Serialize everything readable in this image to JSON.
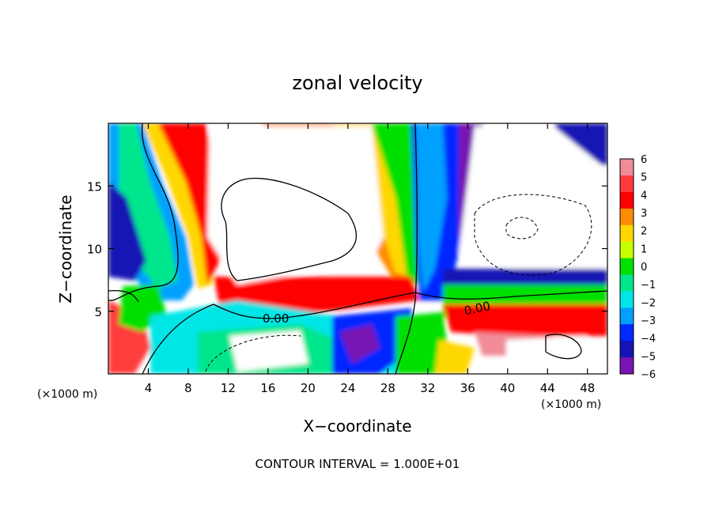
{
  "chart_data": {
    "type": "heatmap",
    "title": "zonal velocity",
    "xlabel": "X−coordinate",
    "ylabel": "Z−coordinate",
    "x_unit_left": "(×1000 m)",
    "x_unit_right": "(×1000 m)",
    "footer": "CONTOUR INTERVAL = 1.000E+01",
    "xlim": [
      0,
      50
    ],
    "ylim": [
      0,
      20
    ],
    "x_ticks": [
      4,
      8,
      12,
      16,
      20,
      24,
      28,
      32,
      36,
      40,
      44,
      48
    ],
    "y_ticks": [
      5,
      10,
      15
    ],
    "colorbar": {
      "levels": [
        6,
        5,
        4,
        3,
        2,
        1,
        0,
        -1,
        -2,
        -3,
        -4,
        -5,
        -6
      ],
      "colors": [
        "#f08c96",
        "#ff3c3c",
        "#ff0000",
        "#ff8c00",
        "#ffd700",
        "#c8ff00",
        "#00e000",
        "#00e68c",
        "#00e6e6",
        "#00a0ff",
        "#0028ff",
        "#1414b4",
        "#7814b4"
      ]
    },
    "contour_labels": [
      {
        "x": 17,
        "z": 4.5,
        "text": "0.00"
      },
      {
        "x": 37,
        "z": 5.2,
        "text": "0.00"
      }
    ],
    "grid": false,
    "legend": "colorbar-right"
  }
}
